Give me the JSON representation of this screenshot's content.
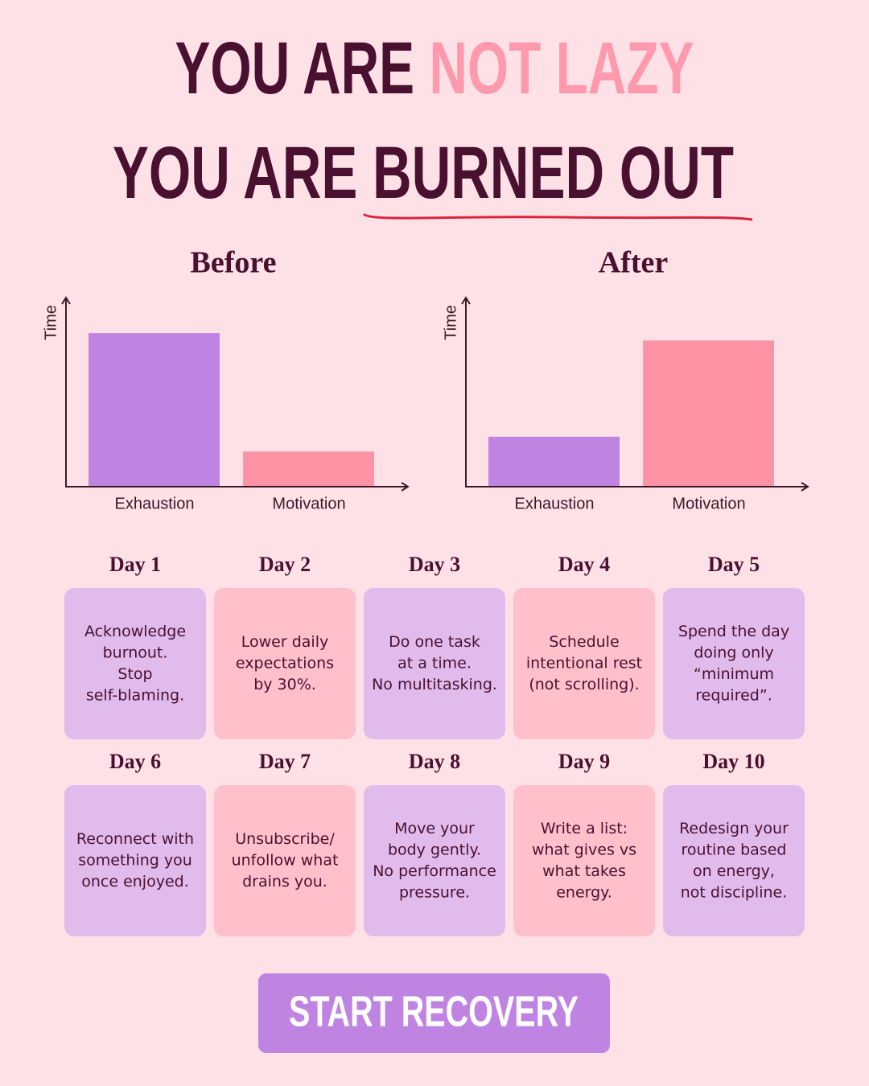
{
  "header": {
    "line1": [
      "YOU ARE ",
      "NOT LAZY"
    ],
    "line2": [
      "YOU ARE ",
      "BURNED OUT"
    ]
  },
  "chart_data": [
    {
      "type": "bar",
      "title": "Before",
      "y_label": "Time",
      "categories": [
        "Exhaustion",
        "Motivation"
      ],
      "values": [
        83,
        19
      ],
      "colors": [
        "#bf84e2",
        "#ff93a6"
      ],
      "ylim": [
        0,
        100
      ]
    },
    {
      "type": "bar",
      "title": "After",
      "y_label": "Time",
      "categories": [
        "Exhaustion",
        "Motivation"
      ],
      "values": [
        27,
        79
      ],
      "colors": [
        "#bf84e2",
        "#ff93a6"
      ],
      "ylim": [
        0,
        100
      ]
    }
  ],
  "days": [
    {
      "label": "Day 1",
      "text": [
        "Acknowledge",
        "burnout.",
        "Stop",
        "self-blaming."
      ],
      "color": "#e0bbec"
    },
    {
      "label": "Day 2",
      "text": [
        "Lower daily",
        "expectations",
        "by 30%."
      ],
      "color": "#ffbfcb"
    },
    {
      "label": "Day 3",
      "text": [
        "Do one task",
        "at a time.",
        "No multitasking."
      ],
      "color": "#e0bbec"
    },
    {
      "label": "Day 4",
      "text": [
        "Schedule",
        "intentional rest",
        "(not scrolling)."
      ],
      "color": "#ffbfcb"
    },
    {
      "label": "Day 5",
      "text": [
        "Spend the day",
        "doing only",
        "“minimum",
        "required”."
      ],
      "color": "#e0bbec"
    },
    {
      "label": "Day 6",
      "text": [
        "Reconnect with",
        "something you",
        "once enjoyed."
      ],
      "color": "#e0bbec"
    },
    {
      "label": "Day 7",
      "text": [
        "Unsubscribe/",
        "unfollow what",
        "drains you."
      ],
      "color": "#ffbfcb"
    },
    {
      "label": "Day 8",
      "text": [
        "Move your",
        "body gently.",
        "No performance",
        "pressure."
      ],
      "color": "#e0bbec"
    },
    {
      "label": "Day 9",
      "text": [
        "Write a list:",
        "what gives vs",
        "what takes",
        "energy."
      ],
      "color": "#ffbfcb"
    },
    {
      "label": "Day 10",
      "text": [
        "Redesign your",
        "routine based",
        "on energy,",
        "not discipline."
      ],
      "color": "#e0bbec"
    }
  ],
  "button": "START RECOVERY"
}
